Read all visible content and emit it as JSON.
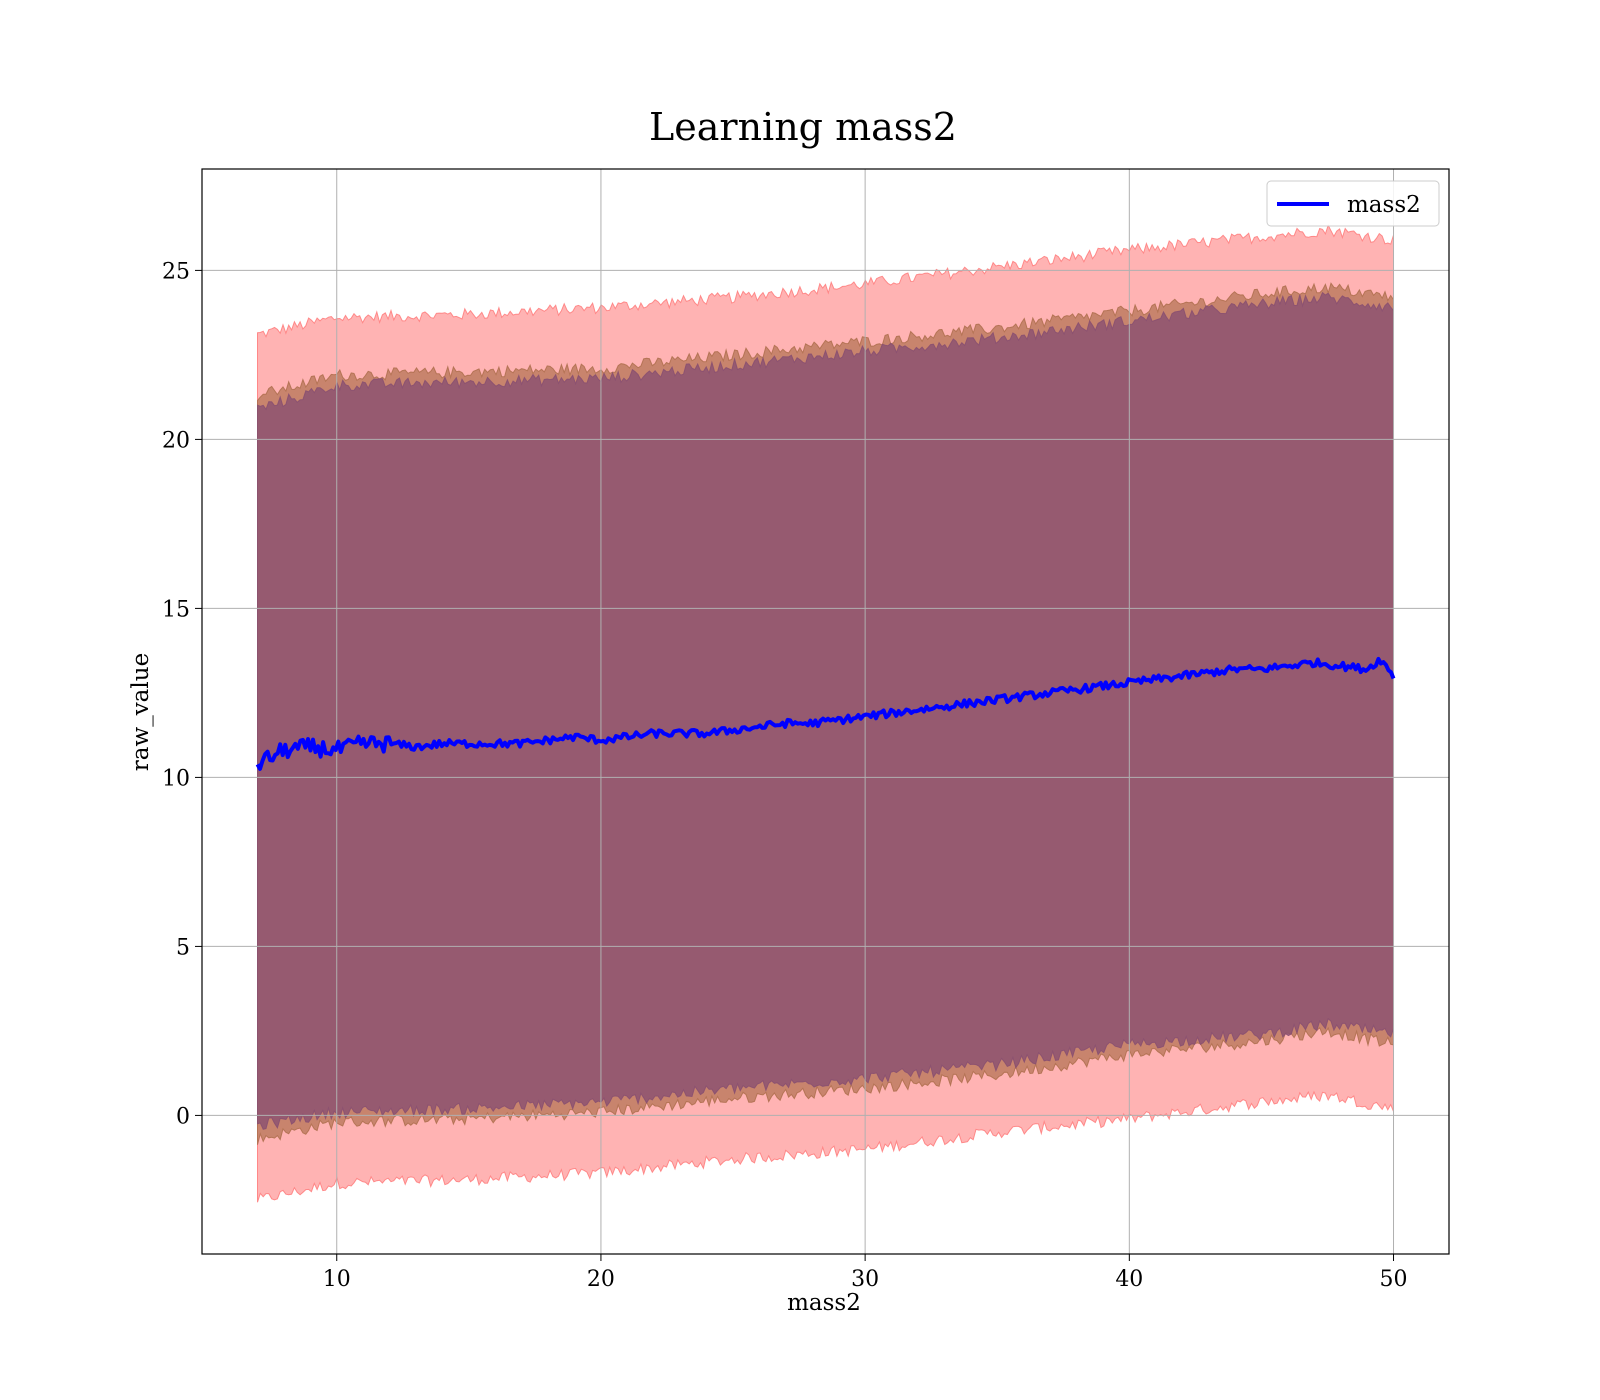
{
  "chart_data": {
    "type": "area",
    "title": "Learning mass2",
    "xlabel": "mass2",
    "ylabel": "raw_value",
    "xlim": [
      4.9,
      52.1
    ],
    "ylim": [
      -4.1,
      28.0
    ],
    "xticks": [
      10,
      20,
      30,
      40,
      50
    ],
    "yticks": [
      0,
      5,
      10,
      15,
      20,
      25
    ],
    "grid": true,
    "legend_position": "top-right",
    "series": [
      {
        "name": "mass2",
        "kind": "line",
        "color": "#0000ff",
        "x": [
          7,
          8,
          9,
          10,
          11,
          12,
          13,
          14,
          15,
          16,
          17,
          18,
          19,
          20,
          21,
          22,
          23,
          24,
          25,
          26,
          27,
          28,
          29,
          30,
          31,
          32,
          33,
          34,
          35,
          36,
          37,
          38,
          39,
          40,
          41,
          42,
          43,
          44,
          45,
          46,
          47,
          48,
          49,
          49.5,
          50
        ],
        "y": [
          10.4,
          10.8,
          10.9,
          10.8,
          11.0,
          11.0,
          10.9,
          11.0,
          11.0,
          11.0,
          11.0,
          11.1,
          11.2,
          11.1,
          11.2,
          11.3,
          11.3,
          11.3,
          11.4,
          11.5,
          11.6,
          11.6,
          11.7,
          11.8,
          11.9,
          12.0,
          12.1,
          12.2,
          12.3,
          12.4,
          12.5,
          12.6,
          12.7,
          12.8,
          12.9,
          13.0,
          13.1,
          13.2,
          13.2,
          13.3,
          13.4,
          13.3,
          13.2,
          13.5,
          13.0
        ]
      }
    ],
    "bands": [
      {
        "color": "#ff8080",
        "opacity": 0.6,
        "x": [
          7,
          10,
          15,
          20,
          25,
          30,
          35,
          40,
          45,
          47.5,
          50
        ],
        "upper": [
          23.1,
          23.6,
          23.7,
          23.9,
          24.2,
          24.6,
          25.1,
          25.6,
          26.0,
          26.2,
          25.9
        ],
        "lower": [
          -2.5,
          -2.0,
          -1.9,
          -1.7,
          -1.3,
          -1.0,
          -0.5,
          -0.1,
          0.4,
          0.6,
          0.2
        ]
      },
      {
        "color": "#b07050",
        "opacity": 0.7,
        "x": [
          7,
          10,
          15,
          20,
          25,
          30,
          35,
          40,
          45,
          47.5,
          50
        ],
        "upper": [
          21.3,
          21.9,
          22.0,
          22.1,
          22.5,
          22.9,
          23.3,
          23.8,
          24.3,
          24.5,
          24.2
        ],
        "lower": [
          -0.7,
          -0.2,
          -0.1,
          0.1,
          0.5,
          0.8,
          1.2,
          1.8,
          2.2,
          2.5,
          2.1
        ]
      },
      {
        "color": "#8a5070",
        "opacity": 0.8,
        "x": [
          7,
          10,
          15,
          20,
          25,
          30,
          35,
          40,
          45,
          47.5,
          50
        ],
        "upper": [
          20.9,
          21.6,
          21.7,
          21.8,
          22.2,
          22.6,
          23.0,
          23.5,
          24.0,
          24.2,
          23.9
        ],
        "lower": [
          -0.3,
          0.1,
          0.2,
          0.4,
          0.8,
          1.1,
          1.5,
          2.1,
          2.4,
          2.7,
          2.4
        ]
      }
    ],
    "legend": [
      {
        "label": "mass2",
        "color": "#0000ff"
      }
    ]
  }
}
